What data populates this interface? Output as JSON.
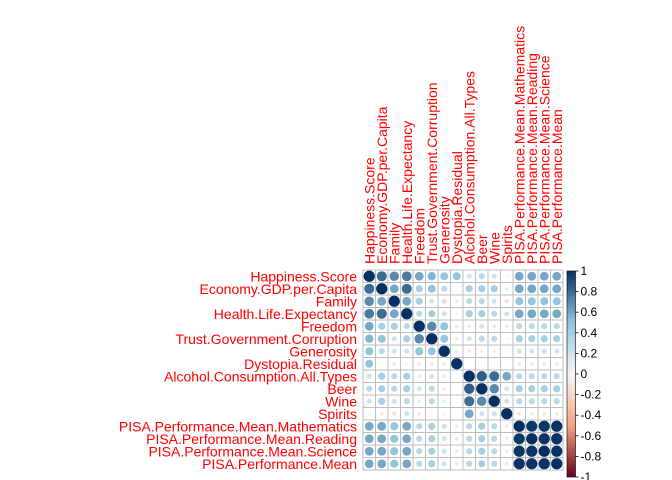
{
  "chart_data": {
    "type": "heatmap",
    "title": "",
    "labels": [
      "Happiness.Score",
      "Economy.GDP.per.Capita",
      "Family",
      "Health.Life.Expectancy",
      "Freedom",
      "Trust.Government.Corruption",
      "Generosity",
      "Dystopia.Residual",
      "Alcohol.Consumption.All.Types",
      "Beer",
      "Wine",
      "Spirits",
      "PISA.Performance.Mean.Mathematics",
      "PISA.Performance.Mean.Reading",
      "PISA.Performance.Mean.Science",
      "PISA.Performance.Mean"
    ],
    "matrix": [
      [
        1.0,
        0.8,
        0.7,
        0.75,
        0.6,
        0.55,
        0.5,
        0.5,
        0.2,
        0.3,
        0.2,
        0.05,
        0.6,
        0.6,
        0.6,
        0.6
      ],
      [
        0.8,
        1.0,
        0.6,
        0.8,
        0.4,
        0.5,
        0.3,
        0.0,
        0.4,
        0.4,
        0.4,
        0.1,
        0.6,
        0.6,
        0.6,
        0.6
      ],
      [
        0.7,
        0.6,
        1.0,
        0.6,
        0.4,
        0.2,
        0.2,
        0.1,
        0.3,
        0.3,
        0.2,
        0.15,
        0.5,
        0.5,
        0.5,
        0.5
      ],
      [
        0.75,
        0.8,
        0.6,
        1.0,
        0.3,
        0.4,
        0.2,
        0.05,
        0.4,
        0.4,
        0.3,
        0.2,
        0.6,
        0.6,
        0.6,
        0.6
      ],
      [
        0.6,
        0.4,
        0.4,
        0.3,
        1.0,
        0.7,
        0.5,
        0.1,
        0.1,
        0.2,
        0.1,
        0.1,
        0.3,
        0.3,
        0.3,
        0.3
      ],
      [
        0.55,
        0.5,
        0.2,
        0.4,
        0.7,
        1.0,
        0.5,
        0.1,
        0.2,
        0.3,
        0.3,
        -0.05,
        0.4,
        0.4,
        0.4,
        0.4
      ],
      [
        0.5,
        0.3,
        0.2,
        0.2,
        0.5,
        0.5,
        1.0,
        0.1,
        0.1,
        0.1,
        0.1,
        0.05,
        0.2,
        0.2,
        0.2,
        0.2
      ],
      [
        0.5,
        0.0,
        0.1,
        0.05,
        0.1,
        0.1,
        0.1,
        1.0,
        0.0,
        0.0,
        0.0,
        0.0,
        0.1,
        0.1,
        0.1,
        0.1
      ],
      [
        0.2,
        0.4,
        0.3,
        0.4,
        0.1,
        0.2,
        0.1,
        0.0,
        1.0,
        0.85,
        0.8,
        0.6,
        0.3,
        0.3,
        0.3,
        0.3
      ],
      [
        0.3,
        0.4,
        0.3,
        0.4,
        0.2,
        0.3,
        0.1,
        0.0,
        0.85,
        1.0,
        0.7,
        0.2,
        0.4,
        0.4,
        0.4,
        0.4
      ],
      [
        0.2,
        0.4,
        0.2,
        0.3,
        0.1,
        0.3,
        0.1,
        0.0,
        0.8,
        0.7,
        1.0,
        0.2,
        0.3,
        0.3,
        0.3,
        0.3
      ],
      [
        0.05,
        0.1,
        0.15,
        0.2,
        0.1,
        -0.05,
        0.05,
        0.0,
        0.6,
        0.2,
        0.2,
        1.0,
        0.1,
        0.1,
        0.1,
        0.1
      ],
      [
        0.6,
        0.6,
        0.5,
        0.6,
        0.3,
        0.4,
        0.2,
        0.1,
        0.3,
        0.4,
        0.3,
        0.1,
        1.0,
        0.97,
        0.98,
        0.99
      ],
      [
        0.6,
        0.6,
        0.5,
        0.6,
        0.3,
        0.4,
        0.2,
        0.1,
        0.3,
        0.4,
        0.3,
        0.1,
        0.97,
        1.0,
        0.98,
        0.99
      ],
      [
        0.6,
        0.6,
        0.5,
        0.6,
        0.3,
        0.4,
        0.2,
        0.1,
        0.3,
        0.4,
        0.3,
        0.1,
        0.98,
        0.98,
        1.0,
        0.99
      ],
      [
        0.6,
        0.6,
        0.5,
        0.6,
        0.3,
        0.4,
        0.2,
        0.1,
        0.3,
        0.4,
        0.3,
        0.1,
        0.99,
        0.99,
        0.99,
        1.0
      ]
    ],
    "colorbar": {
      "ticks": [
        "1",
        "0.8",
        "0.6",
        "0.4",
        "0.2",
        "0",
        "-0.2",
        "-0.4",
        "-0.6",
        "-0.8",
        "-1"
      ],
      "range": [
        -1,
        1
      ]
    },
    "colors": {
      "label": "#ff0000",
      "negative_strong": "#67001f",
      "negative_mid": "#f4a582",
      "neutral": "#f7f7f7",
      "positive_mid": "#92c5de",
      "positive_strong": "#053061",
      "grid": "#bebebe"
    },
    "legend": "right",
    "grid": true
  }
}
